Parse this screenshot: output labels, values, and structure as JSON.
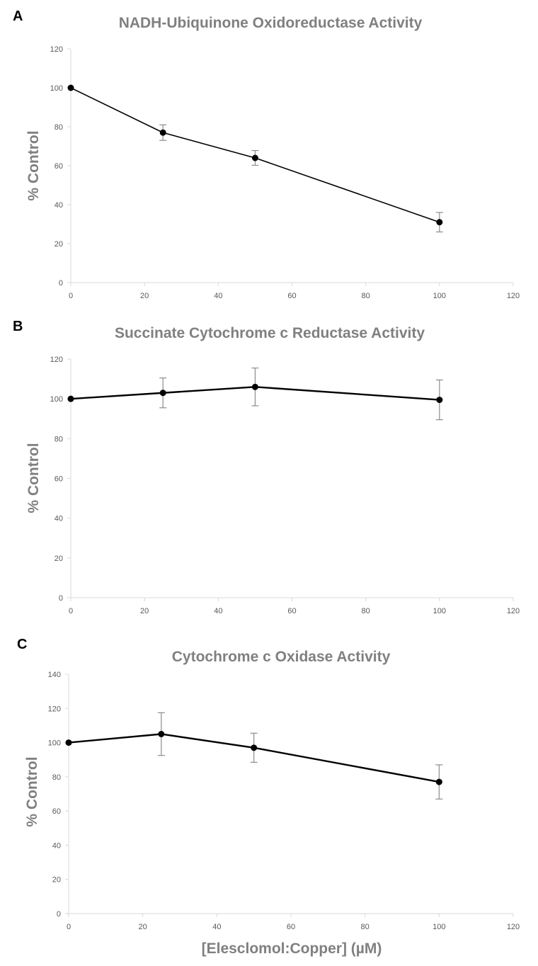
{
  "figure": {
    "x_axis_label": "[Elesclomol:Copper] (µM)"
  },
  "colors": {
    "title": "#808080",
    "axis": "#d9d9d9",
    "tick_text": "#595959",
    "line": "#000000",
    "marker": "#000000",
    "error_bar": "#8c8c8c"
  },
  "chart_data": [
    {
      "panel": "A",
      "type": "line",
      "title": "NADH-Ubiquinone Oxidoreductase Activity",
      "xlabel": "",
      "ylabel": "% Control",
      "x": [
        0,
        25,
        50,
        100
      ],
      "series": [
        {
          "name": "NADH-Ubiquinone Oxidoreductase",
          "values": [
            100,
            77,
            64,
            31
          ],
          "error": [
            0,
            4,
            3.8,
            5
          ]
        }
      ],
      "xlim": [
        0,
        120
      ],
      "ylim": [
        0,
        120
      ],
      "xticks": [
        0,
        20,
        40,
        60,
        80,
        100,
        120
      ],
      "yticks": [
        0,
        20,
        40,
        60,
        80,
        100,
        120
      ],
      "grid": false,
      "legend": "none"
    },
    {
      "panel": "B",
      "type": "line",
      "title": "Succinate Cytochrome c Reductase Activity",
      "xlabel": "",
      "ylabel": "% Control",
      "x": [
        0,
        25,
        50,
        100
      ],
      "series": [
        {
          "name": "Succinate Cytochrome c Reductase",
          "values": [
            100,
            103,
            106,
            99.5
          ],
          "error": [
            0,
            7.5,
            9.5,
            10
          ]
        }
      ],
      "xlim": [
        0,
        120
      ],
      "ylim": [
        0,
        120
      ],
      "xticks": [
        0,
        20,
        40,
        60,
        80,
        100,
        120
      ],
      "yticks": [
        0,
        20,
        40,
        60,
        80,
        100,
        120
      ],
      "grid": false,
      "legend": "none"
    },
    {
      "panel": "C",
      "type": "line",
      "title": "Cytochrome c Oxidase Activity",
      "xlabel": "[Elesclomol:Copper] (µM)",
      "ylabel": "% Control",
      "x": [
        0,
        25,
        50,
        100
      ],
      "series": [
        {
          "name": "Cytochrome c Oxidase",
          "values": [
            100,
            105,
            97,
            77
          ],
          "error": [
            0,
            12.5,
            8.5,
            10
          ]
        }
      ],
      "xlim": [
        0,
        120
      ],
      "ylim": [
        0,
        140
      ],
      "xticks": [
        0,
        20,
        40,
        60,
        80,
        100,
        120
      ],
      "yticks": [
        0,
        20,
        40,
        60,
        80,
        100,
        120,
        140
      ],
      "grid": false,
      "legend": "none"
    }
  ]
}
